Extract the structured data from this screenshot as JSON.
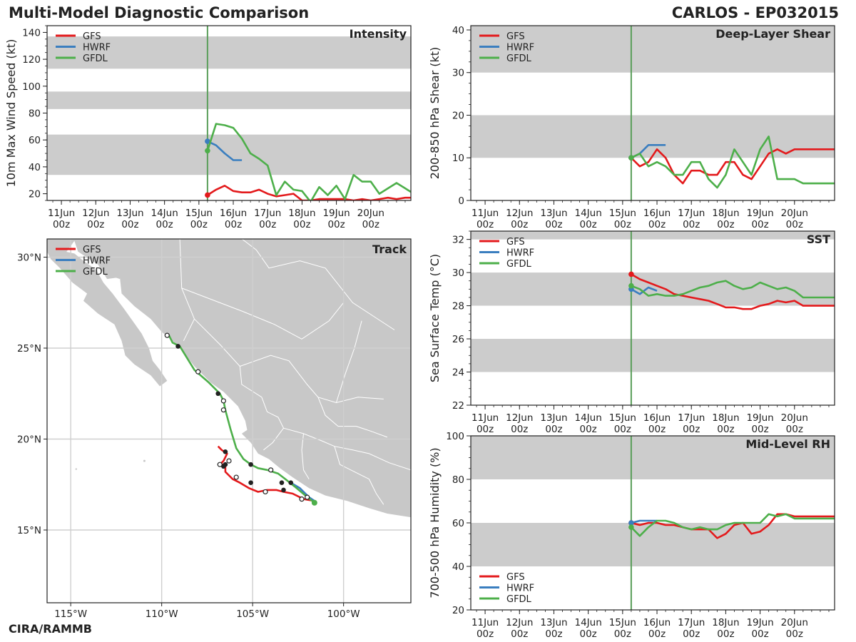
{
  "header": {
    "title": "Multi-Model Diagnostic Comparison",
    "storm": "CARLOS - EP032015",
    "footer": "CIRA/RAMMB"
  },
  "colors": {
    "GFS": "#e31a1c",
    "HWRF": "#3a7ebf",
    "GFDL": "#4daf4a",
    "band": "#cccccc",
    "land": "#c8c8c8",
    "init_line": "#5a9e5a"
  },
  "legend": [
    "GFS",
    "HWRF",
    "GFDL"
  ],
  "time_axis": {
    "tick_top": [
      "11Jun",
      "12Jun",
      "13Jun",
      "14Jun",
      "15Jun",
      "16Jun",
      "17Jun",
      "18Jun",
      "19Jun",
      "20Jun"
    ],
    "tick_bottom": "00z",
    "x_range_hours": [
      -106,
      148
    ],
    "init_hour": 6
  },
  "chart_data": [
    {
      "id": "intensity",
      "type": "line",
      "title": "Intensity",
      "ylabel": "10m Max Wind Speed (kt)",
      "ylim": [
        15,
        145
      ],
      "yticks": [
        20,
        40,
        60,
        80,
        100,
        120,
        140
      ],
      "bands": [
        [
          34,
          64
        ],
        [
          83,
          96
        ],
        [
          113,
          137
        ]
      ],
      "series": [
        {
          "name": "GFS",
          "x": [
            6,
            12,
            18,
            24,
            30,
            36,
            42,
            48,
            54,
            60,
            66,
            72,
            78,
            84,
            90,
            96,
            102,
            108,
            114,
            120,
            126,
            132,
            138,
            144,
            150
          ],
          "values": [
            19,
            23,
            26,
            22,
            21,
            21,
            23,
            20,
            18,
            19,
            20,
            15,
            15,
            16,
            16,
            16,
            16,
            15,
            16,
            15,
            16,
            17,
            16,
            17,
            17
          ]
        },
        {
          "name": "HWRF",
          "x": [
            6,
            12,
            18,
            24,
            30
          ],
          "values": [
            59,
            56,
            50,
            45,
            45
          ]
        },
        {
          "name": "GFDL",
          "x": [
            6,
            12,
            18,
            24,
            30,
            36,
            42,
            48,
            54,
            60,
            66,
            72,
            78,
            84,
            90,
            96,
            102,
            108,
            114,
            120,
            126,
            132,
            138,
            144,
            150
          ],
          "values": [
            52,
            72,
            71,
            69,
            61,
            50,
            46,
            41,
            19,
            29,
            23,
            22,
            14,
            25,
            19,
            26,
            16,
            34,
            29,
            29,
            20,
            24,
            28,
            24,
            20
          ]
        }
      ]
    },
    {
      "id": "shear",
      "type": "line",
      "title": "Deep-Layer Shear",
      "ylabel": "200-850 hPa Shear (kt)",
      "ylim": [
        0,
        41
      ],
      "yticks": [
        0,
        10,
        20,
        30,
        40
      ],
      "bands": [
        [
          10,
          20
        ],
        [
          30,
          41
        ]
      ],
      "series": [
        {
          "name": "GFS",
          "x": [
            6,
            12,
            18,
            24,
            30,
            36,
            42,
            48,
            54,
            60,
            66,
            72,
            78,
            84,
            90,
            96,
            102,
            108,
            114,
            120,
            126,
            132,
            138,
            144,
            150
          ],
          "values": [
            10,
            8,
            9,
            12,
            10,
            6,
            4,
            7,
            7,
            6,
            6,
            9,
            9,
            6,
            5,
            8,
            11,
            12,
            11,
            12,
            12,
            12,
            12,
            12,
            12
          ]
        },
        {
          "name": "HWRF",
          "x": [
            6,
            12,
            18,
            24,
            30
          ],
          "values": [
            10,
            11,
            13,
            13,
            13
          ]
        },
        {
          "name": "GFDL",
          "x": [
            6,
            12,
            18,
            24,
            30,
            36,
            42,
            48,
            54,
            60,
            66,
            72,
            78,
            84,
            90,
            96,
            102,
            108,
            114,
            120,
            126,
            132,
            138,
            144,
            150
          ],
          "values": [
            10,
            11,
            8,
            9,
            8,
            6,
            6,
            9,
            9,
            5,
            3,
            6,
            12,
            9,
            6,
            12,
            15,
            5,
            5,
            5,
            4,
            4,
            4,
            4,
            4
          ]
        }
      ]
    },
    {
      "id": "sst",
      "type": "line",
      "title": "SST",
      "ylabel": "Sea Surface Temp (°C)",
      "ylim": [
        22,
        32.5
      ],
      "yticks": [
        22,
        24,
        26,
        28,
        30,
        32
      ],
      "bands": [
        [
          24,
          26
        ],
        [
          28,
          30
        ],
        [
          32,
          32.5
        ]
      ],
      "series": [
        {
          "name": "GFS",
          "x": [
            6,
            12,
            18,
            24,
            30,
            36,
            42,
            48,
            54,
            60,
            66,
            72,
            78,
            84,
            90,
            96,
            102,
            108,
            114,
            120,
            126,
            132,
            138,
            144,
            150
          ],
          "values": [
            29.9,
            29.6,
            29.4,
            29.2,
            29.0,
            28.7,
            28.6,
            28.5,
            28.4,
            28.3,
            28.1,
            27.9,
            27.9,
            27.8,
            27.8,
            28.0,
            28.1,
            28.3,
            28.2,
            28.3,
            28.0,
            28.0,
            28.0,
            28.0,
            28.0
          ]
        },
        {
          "name": "HWRF",
          "x": [
            6,
            12,
            18,
            24
          ],
          "values": [
            29.0,
            28.7,
            29.1,
            28.9
          ]
        },
        {
          "name": "GFDL",
          "x": [
            6,
            12,
            18,
            24,
            30,
            36,
            42,
            48,
            54,
            60,
            66,
            72,
            78,
            84,
            90,
            96,
            102,
            108,
            114,
            120,
            126,
            132,
            138,
            144,
            150
          ],
          "values": [
            29.2,
            29.0,
            28.6,
            28.7,
            28.6,
            28.6,
            28.7,
            28.9,
            29.1,
            29.2,
            29.4,
            29.5,
            29.2,
            29.0,
            29.1,
            29.4,
            29.2,
            29.0,
            29.1,
            28.9,
            28.5,
            28.5,
            28.5,
            28.5,
            28.5
          ]
        }
      ]
    },
    {
      "id": "rh",
      "type": "line",
      "title": "Mid-Level RH",
      "ylabel": "700-500 hPa Humidity (%)",
      "ylim": [
        20,
        100
      ],
      "yticks": [
        20,
        40,
        60,
        80,
        100
      ],
      "bands": [
        [
          40,
          60
        ],
        [
          80,
          100
        ]
      ],
      "legend_position": "bottom-left",
      "series": [
        {
          "name": "GFS",
          "x": [
            6,
            12,
            18,
            24,
            30,
            36,
            42,
            48,
            54,
            60,
            66,
            72,
            78,
            84,
            90,
            96,
            102,
            108,
            114,
            120,
            126,
            132,
            138,
            144,
            150
          ],
          "values": [
            60,
            59,
            60,
            60,
            59,
            59,
            58,
            57,
            57,
            57,
            53,
            55,
            59,
            60,
            55,
            56,
            59,
            64,
            64,
            63,
            63,
            63,
            63,
            63,
            63
          ]
        },
        {
          "name": "HWRF",
          "x": [
            6,
            12,
            18,
            24
          ],
          "values": [
            60,
            61,
            61,
            61
          ]
        },
        {
          "name": "GFDL",
          "x": [
            6,
            12,
            18,
            24,
            30,
            36,
            42,
            48,
            54,
            60,
            66,
            72,
            78,
            84,
            90,
            96,
            102,
            108,
            114,
            120,
            126,
            132,
            138,
            144,
            150
          ],
          "values": [
            58,
            54,
            58,
            61,
            61,
            60,
            58,
            57,
            58,
            57,
            57,
            59,
            60,
            60,
            60,
            60,
            64,
            63,
            64,
            62,
            62,
            62,
            62,
            62,
            62
          ]
        }
      ]
    },
    {
      "id": "track",
      "type": "map",
      "title": "Track",
      "lon_range": [
        -116.3,
        -96.3
      ],
      "lat_range": [
        11,
        31
      ],
      "lon_ticks": [
        -115,
        -110,
        -105,
        -100
      ],
      "lon_tick_labels": [
        "115°W",
        "110°W",
        "105°W",
        "100°W"
      ],
      "lat_ticks": [
        15,
        20,
        25,
        30
      ],
      "lat_tick_labels": [
        "15°N",
        "20°N",
        "25°N",
        "30°N"
      ],
      "series": [
        {
          "name": "GFS",
          "lon": [
            -101.6,
            -102.2,
            -102.8,
            -103.3,
            -103.7,
            -104.2,
            -104.7,
            -105.2,
            -105.7,
            -106.1,
            -106.3,
            -106.5,
            -106.5,
            -106.5,
            -106.7,
            -106.8,
            -106.6,
            -106.4,
            -106.7,
            -106.9
          ],
          "lat": [
            16.6,
            16.7,
            17.0,
            17.1,
            17.2,
            17.2,
            17.1,
            17.3,
            17.6,
            17.8,
            18.0,
            18.2,
            18.5,
            18.6,
            18.6,
            18.6,
            18.8,
            19.2,
            19.4,
            19.6
          ]
        },
        {
          "name": "HWRF",
          "lon": [
            -101.6,
            -101.9,
            -102.4,
            -102.9
          ],
          "lat": [
            16.6,
            16.8,
            17.3,
            17.6
          ]
        },
        {
          "name": "GFDL",
          "lon": [
            -101.6,
            -102.1,
            -102.7,
            -103.2,
            -103.6,
            -104.2,
            -104.7,
            -105.1,
            -105.5,
            -105.9,
            -106.2,
            -106.5,
            -106.6,
            -106.8,
            -107.4,
            -108.2,
            -109.0,
            -109.4,
            -109.6
          ],
          "lat": [
            16.5,
            16.9,
            17.4,
            17.8,
            18.1,
            18.3,
            18.4,
            18.6,
            18.9,
            19.5,
            20.5,
            21.6,
            22.1,
            22.5,
            23.1,
            23.8,
            25.1,
            25.3,
            25.7
          ]
        }
      ],
      "markers": {
        "filled": [
          [
            -103.4,
            17.6
          ],
          [
            -102.9,
            17.6
          ],
          [
            -103.3,
            17.2
          ],
          [
            -105.1,
            17.6
          ],
          [
            -105.1,
            18.6
          ],
          [
            -106.5,
            18.6
          ],
          [
            -106.6,
            18.5
          ],
          [
            -106.5,
            19.3
          ],
          [
            -106.9,
            22.5
          ],
          [
            -109.1,
            25.1
          ]
        ],
        "open": [
          [
            -102.3,
            16.7
          ],
          [
            -102.0,
            16.8
          ],
          [
            -104.3,
            17.1
          ],
          [
            -105.9,
            17.9
          ],
          [
            -106.3,
            18.8
          ],
          [
            -106.8,
            18.6
          ],
          [
            -104.0,
            18.3
          ],
          [
            -106.6,
            21.6
          ],
          [
            -106.6,
            22.1
          ],
          [
            -108.0,
            23.7
          ],
          [
            -109.7,
            25.7
          ]
        ]
      }
    }
  ]
}
